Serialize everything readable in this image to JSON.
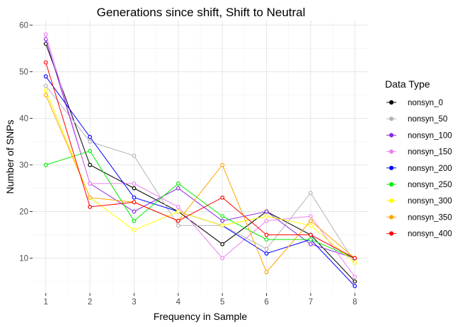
{
  "chart_data": {
    "type": "line",
    "title": "Generations since shift, Shift to Neutral",
    "xlabel": "Frequency in Sample",
    "ylabel": "Number of SNPs",
    "x": [
      1,
      2,
      3,
      4,
      5,
      6,
      7,
      8
    ],
    "xlim": [
      0.7,
      8.3
    ],
    "ylim": [
      2.5,
      61
    ],
    "yticks": [
      10,
      20,
      30,
      40,
      50,
      60
    ],
    "grid": true,
    "legend_title": "Data Type",
    "legend_position": "right",
    "series": [
      {
        "name": "nonsyn_0",
        "color": "#000000",
        "values": [
          56,
          30,
          25,
          20,
          13,
          20,
          15,
          5
        ]
      },
      {
        "name": "nonsyn_50",
        "color": "#b3b3b3",
        "values": [
          47,
          35,
          32,
          17,
          17,
          12,
          24,
          9
        ]
      },
      {
        "name": "nonsyn_100",
        "color": "#8a2be2",
        "values": [
          57,
          26,
          20,
          25,
          18,
          20,
          13,
          10
        ]
      },
      {
        "name": "nonsyn_150",
        "color": "#ee82ee",
        "values": [
          58,
          26,
          26,
          21,
          10,
          18,
          19,
          6
        ]
      },
      {
        "name": "nonsyn_200",
        "color": "#0000ff",
        "values": [
          49,
          36,
          23,
          20,
          17,
          11,
          14,
          4
        ]
      },
      {
        "name": "nonsyn_250",
        "color": "#00ee00",
        "values": [
          30,
          33,
          18,
          26,
          19,
          14,
          14,
          10
        ]
      },
      {
        "name": "nonsyn_300",
        "color": "#ffff00",
        "values": [
          46,
          23,
          16,
          20,
          17,
          19,
          17,
          9
        ]
      },
      {
        "name": "nonsyn_350",
        "color": "#ffa500",
        "values": [
          45,
          23,
          22,
          18,
          30,
          7,
          18,
          10
        ]
      },
      {
        "name": "nonsyn_400",
        "color": "#ff0000",
        "values": [
          52,
          21,
          22,
          18,
          23,
          15,
          15,
          10
        ]
      }
    ]
  }
}
